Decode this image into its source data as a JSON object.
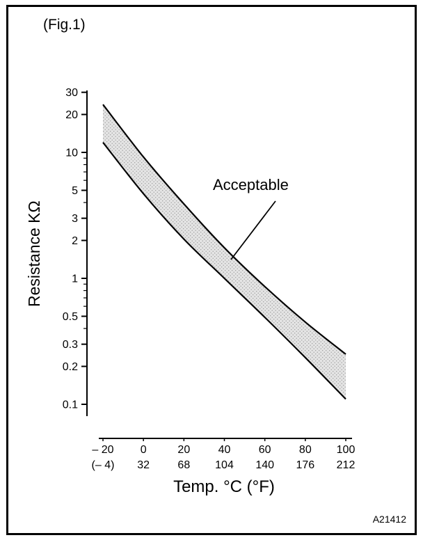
{
  "figure": {
    "label": "(Fig.1)",
    "code": "A21412"
  },
  "chart_data": {
    "type": "area",
    "title": "",
    "xlabel": "Temp. °C (°F)",
    "ylabel": "Resistance KΩ",
    "annotation": "Acceptable",
    "x_axis": {
      "values": [
        -20,
        0,
        20,
        40,
        60,
        80,
        100
      ],
      "labels_celsius": [
        "– 20",
        "0",
        "20",
        "40",
        "60",
        "80",
        "100"
      ],
      "labels_fahrenheit": [
        "(– 4)",
        "32",
        "68",
        "104",
        "140",
        "176",
        "212"
      ]
    },
    "y_axis": {
      "scale": "log",
      "range": [
        0.1,
        30
      ],
      "tick_labels": [
        "30",
        "20",
        "10",
        "5",
        "3",
        "2",
        "1",
        "0.5",
        "0.3",
        "0.2",
        "0.1"
      ]
    },
    "series": [
      {
        "name": "acceptable-upper-limit",
        "values": [
          24,
          9.2,
          3.9,
          1.75,
          0.86,
          0.45,
          0.25
        ]
      },
      {
        "name": "acceptable-lower-limit",
        "values": [
          12,
          4.7,
          2.05,
          1.0,
          0.49,
          0.235,
          0.11
        ]
      }
    ],
    "band_fill": "stippled-gray",
    "grid": false,
    "legend": false,
    "colors": {
      "line": "#000000",
      "band_base": "#e4e4e4",
      "band_dot": "#9a9a9a"
    }
  }
}
